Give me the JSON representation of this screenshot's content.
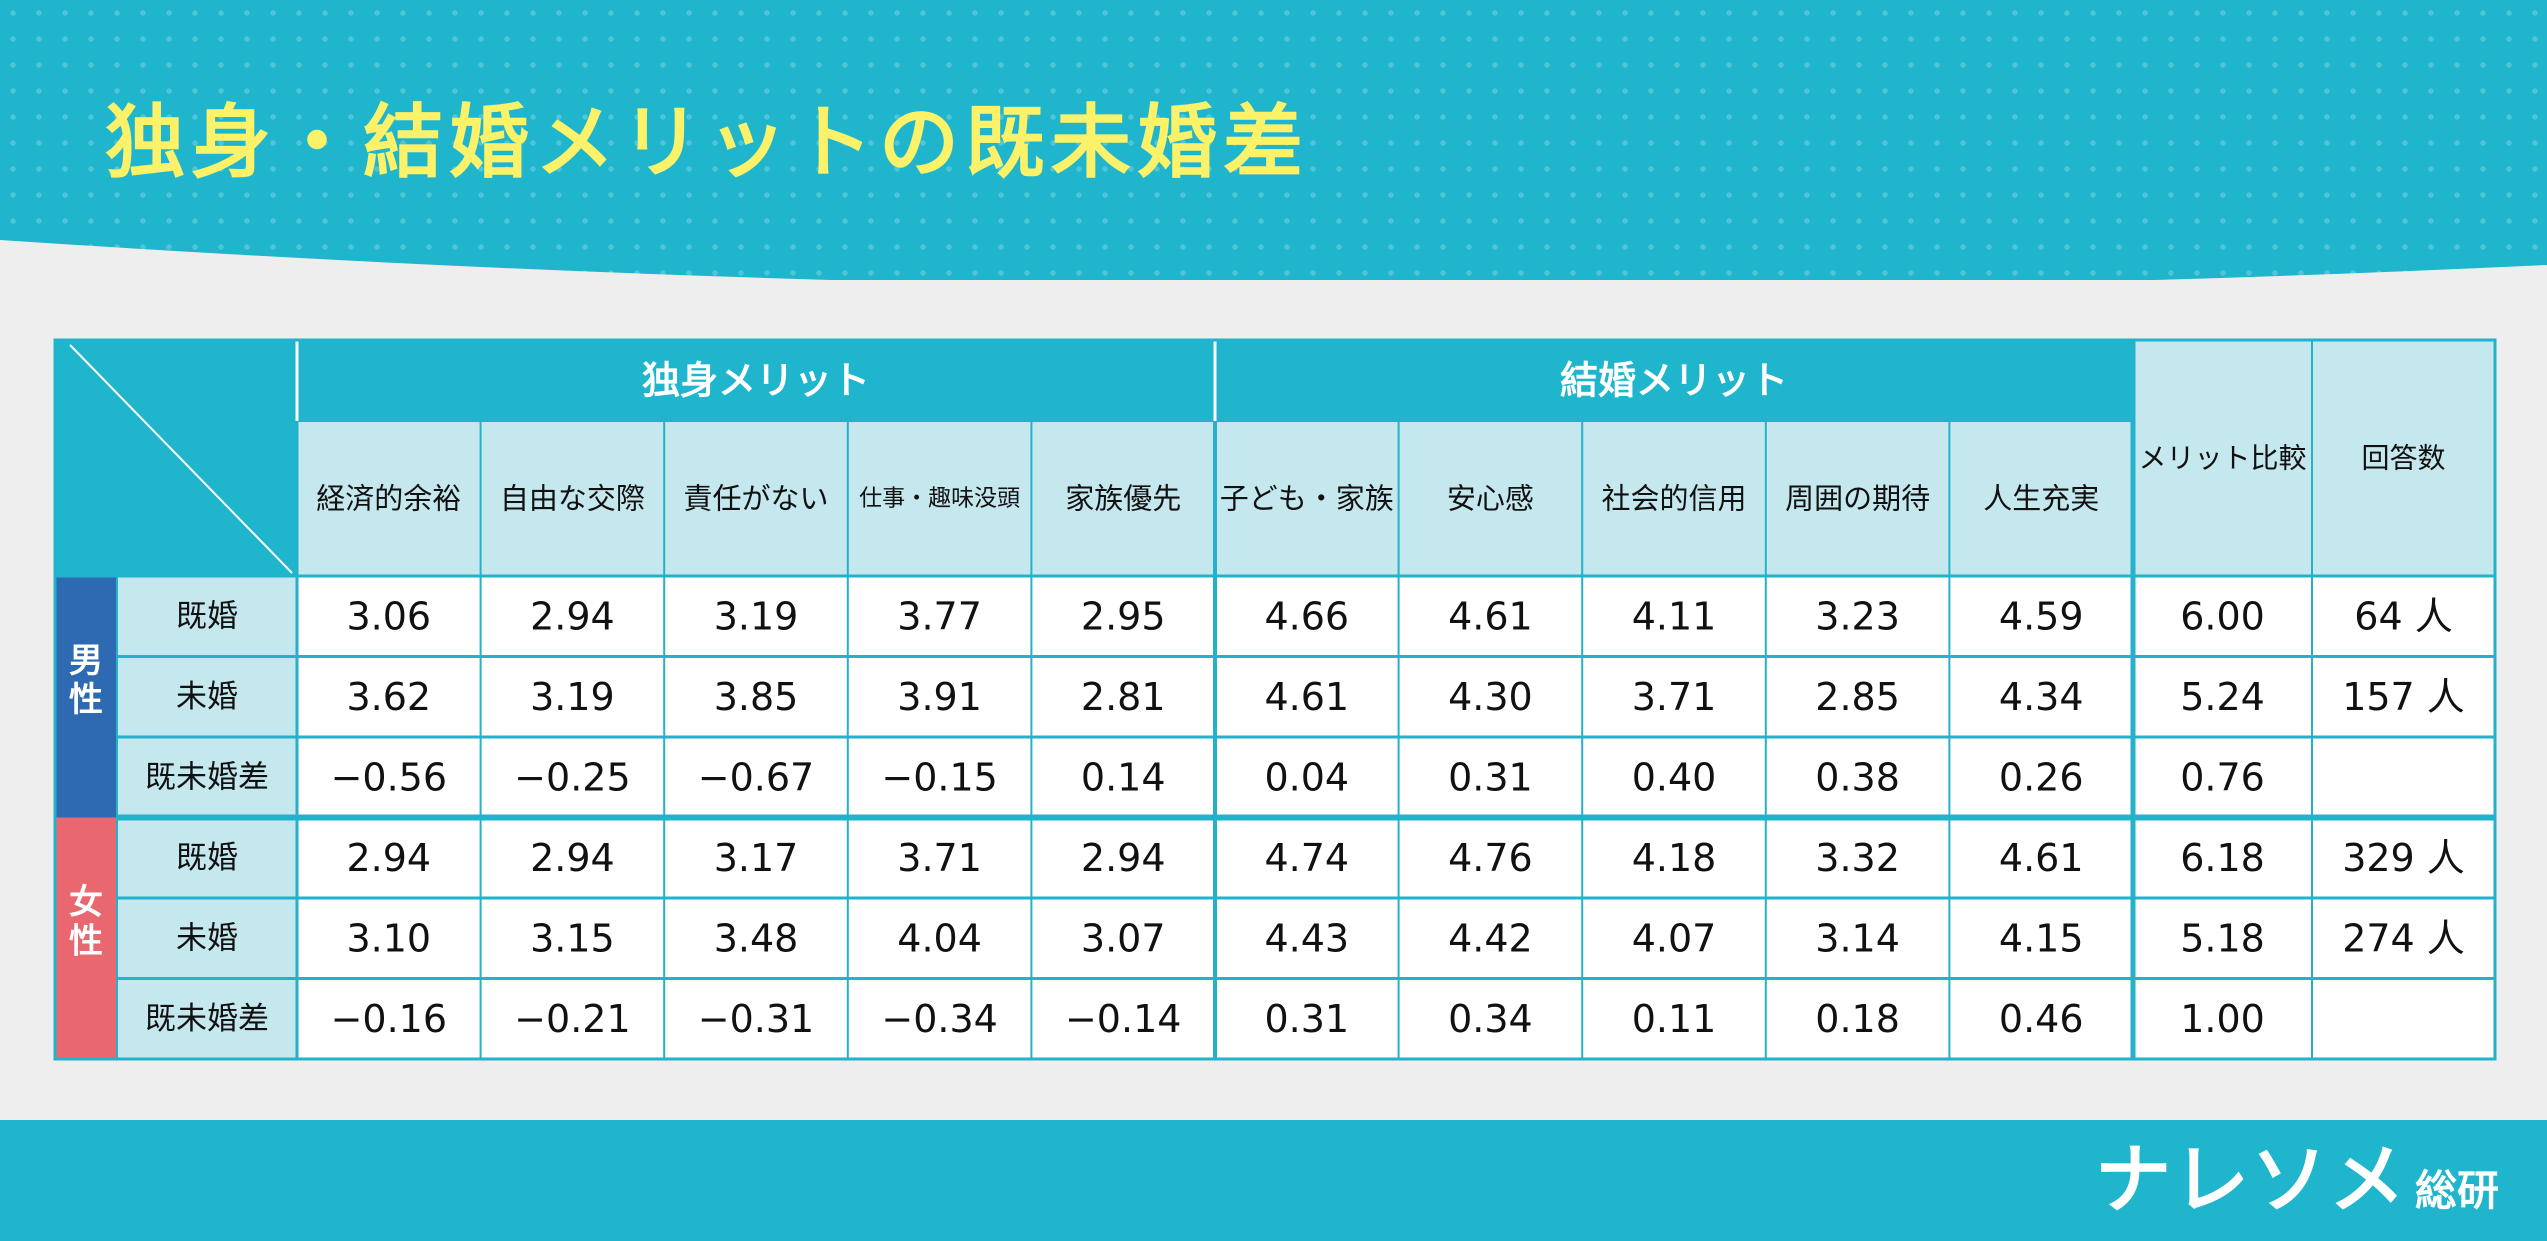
{
  "title": "独身・結婚メリットの既未婚差",
  "logo": {
    "main": "ナレソメ",
    "sub": "総研"
  },
  "colors": {
    "brand": "#1fb5cc",
    "header_cell": "#c5e7ee",
    "border": "#22b2cb",
    "male": "#2d6ab2",
    "female": "#e9686f",
    "title": "#fbf26a"
  },
  "table": {
    "groups": [
      "独身メリット",
      "結婚メリット"
    ],
    "columns": [
      "経済的余裕",
      "自由な交際",
      "責任がない",
      "仕事・趣味没頭",
      "家族優先",
      "子ども・家族",
      "安心感",
      "社会的信用",
      "周囲の期待",
      "人生充実"
    ],
    "extra_columns": [
      "メリット比較",
      "回答数"
    ],
    "sections": [
      {
        "label": "男性",
        "rows": [
          {
            "label": "既婚",
            "values": [
              "3.06",
              "2.94",
              "3.19",
              "3.77",
              "2.95",
              "4.66",
              "4.61",
              "4.11",
              "3.23",
              "4.59"
            ],
            "compare": "6.00",
            "count": "64 人"
          },
          {
            "label": "未婚",
            "values": [
              "3.62",
              "3.19",
              "3.85",
              "3.91",
              "2.81",
              "4.61",
              "4.30",
              "3.71",
              "2.85",
              "4.34"
            ],
            "compare": "5.24",
            "count": "157 人"
          },
          {
            "label": "既未婚差",
            "values": [
              "−0.56",
              "−0.25",
              "−0.67",
              "−0.15",
              "0.14",
              "0.04",
              "0.31",
              "0.40",
              "0.38",
              "0.26"
            ],
            "compare": "0.76",
            "count": ""
          }
        ]
      },
      {
        "label": "女性",
        "rows": [
          {
            "label": "既婚",
            "values": [
              "2.94",
              "2.94",
              "3.17",
              "3.71",
              "2.94",
              "4.74",
              "4.76",
              "4.18",
              "3.32",
              "4.61"
            ],
            "compare": "6.18",
            "count": "329 人"
          },
          {
            "label": "未婚",
            "values": [
              "3.10",
              "3.15",
              "3.48",
              "4.04",
              "3.07",
              "4.43",
              "4.42",
              "4.07",
              "3.14",
              "4.15"
            ],
            "compare": "5.18",
            "count": "274 人"
          },
          {
            "label": "既未婚差",
            "values": [
              "−0.16",
              "−0.21",
              "−0.31",
              "−0.34",
              "−0.14",
              "0.31",
              "0.34",
              "0.11",
              "0.18",
              "0.46"
            ],
            "compare": "1.00",
            "count": ""
          }
        ]
      }
    ]
  },
  "chart_data": {
    "type": "table",
    "title": "独身・結婚メリットの既未婚差",
    "groups": [
      {
        "name": "独身メリット",
        "columns": [
          "経済的余裕",
          "自由な交際",
          "責任がない",
          "仕事・趣味没頭",
          "家族優先"
        ]
      },
      {
        "name": "結婚メリット",
        "columns": [
          "子ども・家族",
          "安心感",
          "社会的信用",
          "周囲の期待",
          "人生充実"
        ]
      }
    ],
    "extra_columns": [
      "メリット比較",
      "回答数"
    ],
    "rows": [
      {
        "sex": "男性",
        "status": "既婚",
        "values": [
          3.06,
          2.94,
          3.19,
          3.77,
          2.95,
          4.66,
          4.61,
          4.11,
          3.23,
          4.59
        ],
        "compare": 6.0,
        "count": 64
      },
      {
        "sex": "男性",
        "status": "未婚",
        "values": [
          3.62,
          3.19,
          3.85,
          3.91,
          2.81,
          4.61,
          4.3,
          3.71,
          2.85,
          4.34
        ],
        "compare": 5.24,
        "count": 157
      },
      {
        "sex": "男性",
        "status": "既未婚差",
        "values": [
          -0.56,
          -0.25,
          -0.67,
          -0.15,
          0.14,
          0.04,
          0.31,
          0.4,
          0.38,
          0.26
        ],
        "compare": 0.76,
        "count": null
      },
      {
        "sex": "女性",
        "status": "既婚",
        "values": [
          2.94,
          2.94,
          3.17,
          3.71,
          2.94,
          4.74,
          4.76,
          4.18,
          3.32,
          4.61
        ],
        "compare": 6.18,
        "count": 329
      },
      {
        "sex": "女性",
        "status": "未婚",
        "values": [
          3.1,
          3.15,
          3.48,
          4.04,
          3.07,
          4.43,
          4.42,
          4.07,
          3.14,
          4.15
        ],
        "compare": 5.18,
        "count": 274
      },
      {
        "sex": "女性",
        "status": "既未婚差",
        "values": [
          -0.16,
          -0.21,
          -0.31,
          -0.34,
          -0.14,
          0.31,
          0.34,
          0.11,
          0.18,
          0.46
        ],
        "compare": 1.0,
        "count": null
      }
    ]
  }
}
